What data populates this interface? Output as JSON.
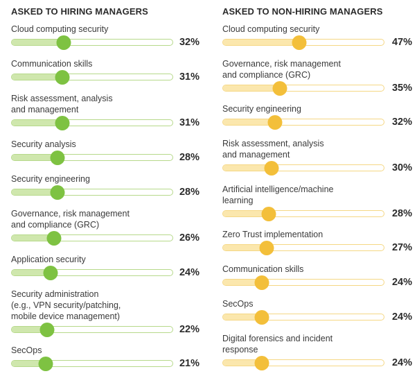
{
  "chart_data": [
    {
      "type": "bar",
      "title": "ASKED TO HIRING MANAGERS",
      "unit": "%",
      "xlim": [
        0,
        100
      ],
      "color": "#7ec242",
      "categories": [
        "Cloud computing security",
        "Communication skills",
        "Risk assessment, analysis and management",
        "Security analysis",
        "Security engineering",
        "Governance, risk management and compliance (GRC)",
        "Application security",
        "Security administration (e.g., VPN security/patching, mobile device management)",
        "SecOps"
      ],
      "category_lines": [
        [
          "Cloud computing security"
        ],
        [
          "Communication skills"
        ],
        [
          "Risk assessment, analysis",
          "and management"
        ],
        [
          "Security analysis"
        ],
        [
          "Security engineering"
        ],
        [
          "Governance, risk management",
          "and compliance (GRC)"
        ],
        [
          "Application security"
        ],
        [
          "Security administration",
          "(e.g., VPN security/patching,",
          "mobile device management)"
        ],
        [
          "SecOps"
        ]
      ],
      "values": [
        32,
        31,
        31,
        28,
        28,
        26,
        24,
        22,
        21
      ],
      "value_labels": [
        "32%",
        "31%",
        "31%",
        "28%",
        "28%",
        "26%",
        "24%",
        "22%",
        "21%"
      ]
    },
    {
      "type": "bar",
      "title": "ASKED TO NON-HIRING MANAGERS",
      "unit": "%",
      "xlim": [
        0,
        100
      ],
      "color": "#f3bf3a",
      "categories": [
        "Cloud computing security",
        "Governance, risk management and compliance (GRC)",
        "Security engineering",
        "Risk assessment, analysis and management",
        "Artificial intelligence/machine learning",
        "Zero Trust implementation",
        "Communication skills",
        "SecOps",
        "Digital forensics and incident response"
      ],
      "category_lines": [
        [
          "Cloud computing security"
        ],
        [
          "Governance, risk management",
          "and compliance (GRC)"
        ],
        [
          "Security engineering"
        ],
        [
          "Risk assessment, analysis",
          "and management"
        ],
        [
          "Artificial intelligence/machine",
          "learning"
        ],
        [
          "Zero Trust implementation"
        ],
        [
          "Communication skills"
        ],
        [
          "SecOps"
        ],
        [
          "Digital forensics and incident",
          "response"
        ]
      ],
      "values": [
        47,
        35,
        32,
        30,
        28,
        27,
        24,
        24,
        24
      ],
      "value_labels": [
        "47%",
        "35%",
        "32%",
        "30%",
        "28%",
        "27%",
        "24%",
        "24%",
        "24%"
      ]
    }
  ]
}
